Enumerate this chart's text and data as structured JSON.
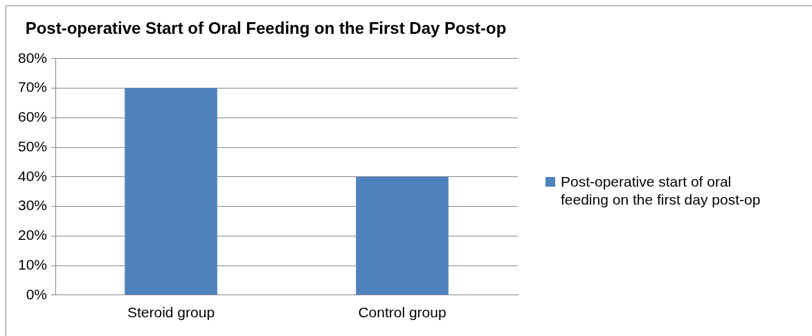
{
  "chart_data": {
    "type": "bar",
    "title": "Post-operative Start of Oral Feeding on the First Day Post-op",
    "categories": [
      "Steroid group",
      "Control group"
    ],
    "series": [
      {
        "name": "Post-operative start of oral feeding on the first day post-op",
        "color": "#4f81bd",
        "values": [
          70,
          40
        ]
      }
    ],
    "ylim": [
      0,
      80
    ],
    "yticks": [
      {
        "value": 0,
        "label": "0%"
      },
      {
        "value": 10,
        "label": "10%"
      },
      {
        "value": 20,
        "label": "20%"
      },
      {
        "value": 30,
        "label": "30%"
      },
      {
        "value": 40,
        "label": "40%"
      },
      {
        "value": 50,
        "label": "50%"
      },
      {
        "value": 60,
        "label": "60%"
      },
      {
        "value": 70,
        "label": "70%"
      },
      {
        "value": 80,
        "label": "80%"
      }
    ],
    "grid": "y",
    "legend": "right"
  }
}
